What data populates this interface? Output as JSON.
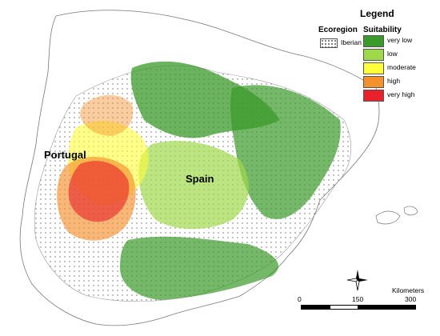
{
  "labels": {
    "portugal": "Portugal",
    "spain": "Spain"
  },
  "legend": {
    "title": "Legend",
    "ecoregion_header": "Ecoregion",
    "suitability_header": "Suitability",
    "ecoregion_item": "Iberian",
    "suitability_items": [
      {
        "label": "very low",
        "color": "#3a9a2a"
      },
      {
        "label": "low",
        "color": "#9fd94a"
      },
      {
        "label": "moderate",
        "color": "#ffff3a"
      },
      {
        "label": "high",
        "color": "#f5912d"
      },
      {
        "label": "very high",
        "color": "#e8212a"
      }
    ]
  },
  "scale_bar": {
    "unit": "Kilometers",
    "ticks": [
      "0",
      "150",
      "300"
    ]
  },
  "compass": {
    "icon": "compass-rose-icon"
  }
}
